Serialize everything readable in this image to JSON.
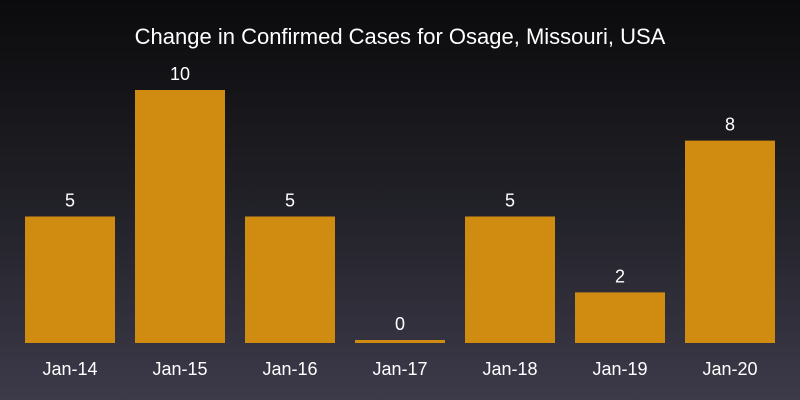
{
  "chart_data": {
    "type": "bar",
    "title": "Change in Confirmed Cases for Osage, Missouri, USA",
    "xlabel": "",
    "ylabel": "",
    "categories": [
      "Jan-14",
      "Jan-15",
      "Jan-16",
      "Jan-17",
      "Jan-18",
      "Jan-19",
      "Jan-20"
    ],
    "values": [
      5,
      10,
      5,
      0,
      5,
      2,
      8
    ],
    "ylim": [
      0,
      10
    ],
    "grid": false,
    "legend": "none",
    "bar_color": "#d08c10",
    "background_gradient": [
      "#0b0b0d",
      "#3d3a4a"
    ]
  }
}
